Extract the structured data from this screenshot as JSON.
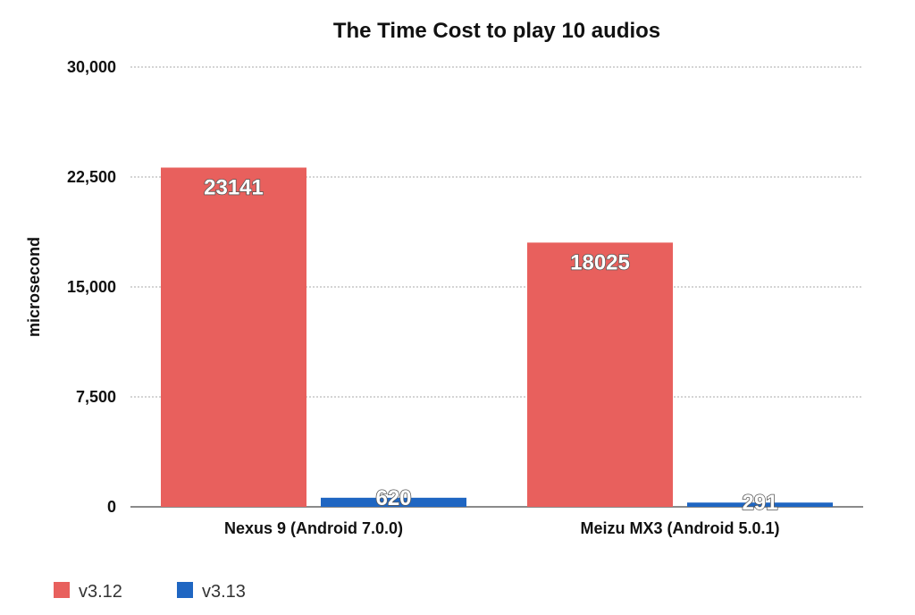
{
  "chart_data": {
    "type": "bar",
    "title": "The Time Cost to play 10 audios",
    "xlabel": "",
    "ylabel": "microsecond",
    "ylim": [
      0,
      30000
    ],
    "yticks": [
      {
        "value": 0,
        "label": "0"
      },
      {
        "value": 7500,
        "label": "7,500"
      },
      {
        "value": 15000,
        "label": "15,000"
      },
      {
        "value": 22500,
        "label": "22,500"
      },
      {
        "value": 30000,
        "label": "30,000"
      }
    ],
    "categories": [
      "Nexus 9 (Android 7.0.0)",
      "Meizu MX3 (Android 5.0.1)"
    ],
    "series": [
      {
        "name": "v3.12",
        "color": "#e8605d",
        "values": [
          23141,
          18025
        ],
        "labels": [
          "23141",
          "18025"
        ]
      },
      {
        "name": "v3.13",
        "color": "#1f66c2",
        "values": [
          620,
          291
        ],
        "labels": [
          "620",
          "291"
        ]
      }
    ],
    "grid": true,
    "legend_position": "bottom-left"
  }
}
